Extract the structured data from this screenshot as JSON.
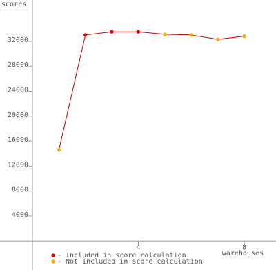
{
  "chart_data": {
    "type": "line",
    "y_label": "scores",
    "x_label": "warehouses",
    "x": [
      1,
      2,
      3,
      4,
      5,
      6,
      7,
      8
    ],
    "values": [
      14600,
      33000,
      33500,
      33500,
      33100,
      33000,
      32300,
      32800
    ],
    "line_color": "#c00000",
    "legend": [
      {
        "label": "- Included in score calculation",
        "color": "#dd0000"
      },
      {
        "label": "- Not included in score calculation",
        "color": "#f0b000"
      }
    ],
    "point_group": [
      1,
      0,
      0,
      0,
      1,
      1,
      1,
      1
    ],
    "xlim": [
      0,
      9.2
    ],
    "xticks": [
      4,
      8
    ],
    "ylim": [
      -4600,
      38600
    ],
    "yticks": [
      4000,
      8000,
      12000,
      16000,
      20000,
      24000,
      28000,
      32000
    ],
    "grid": false
  }
}
